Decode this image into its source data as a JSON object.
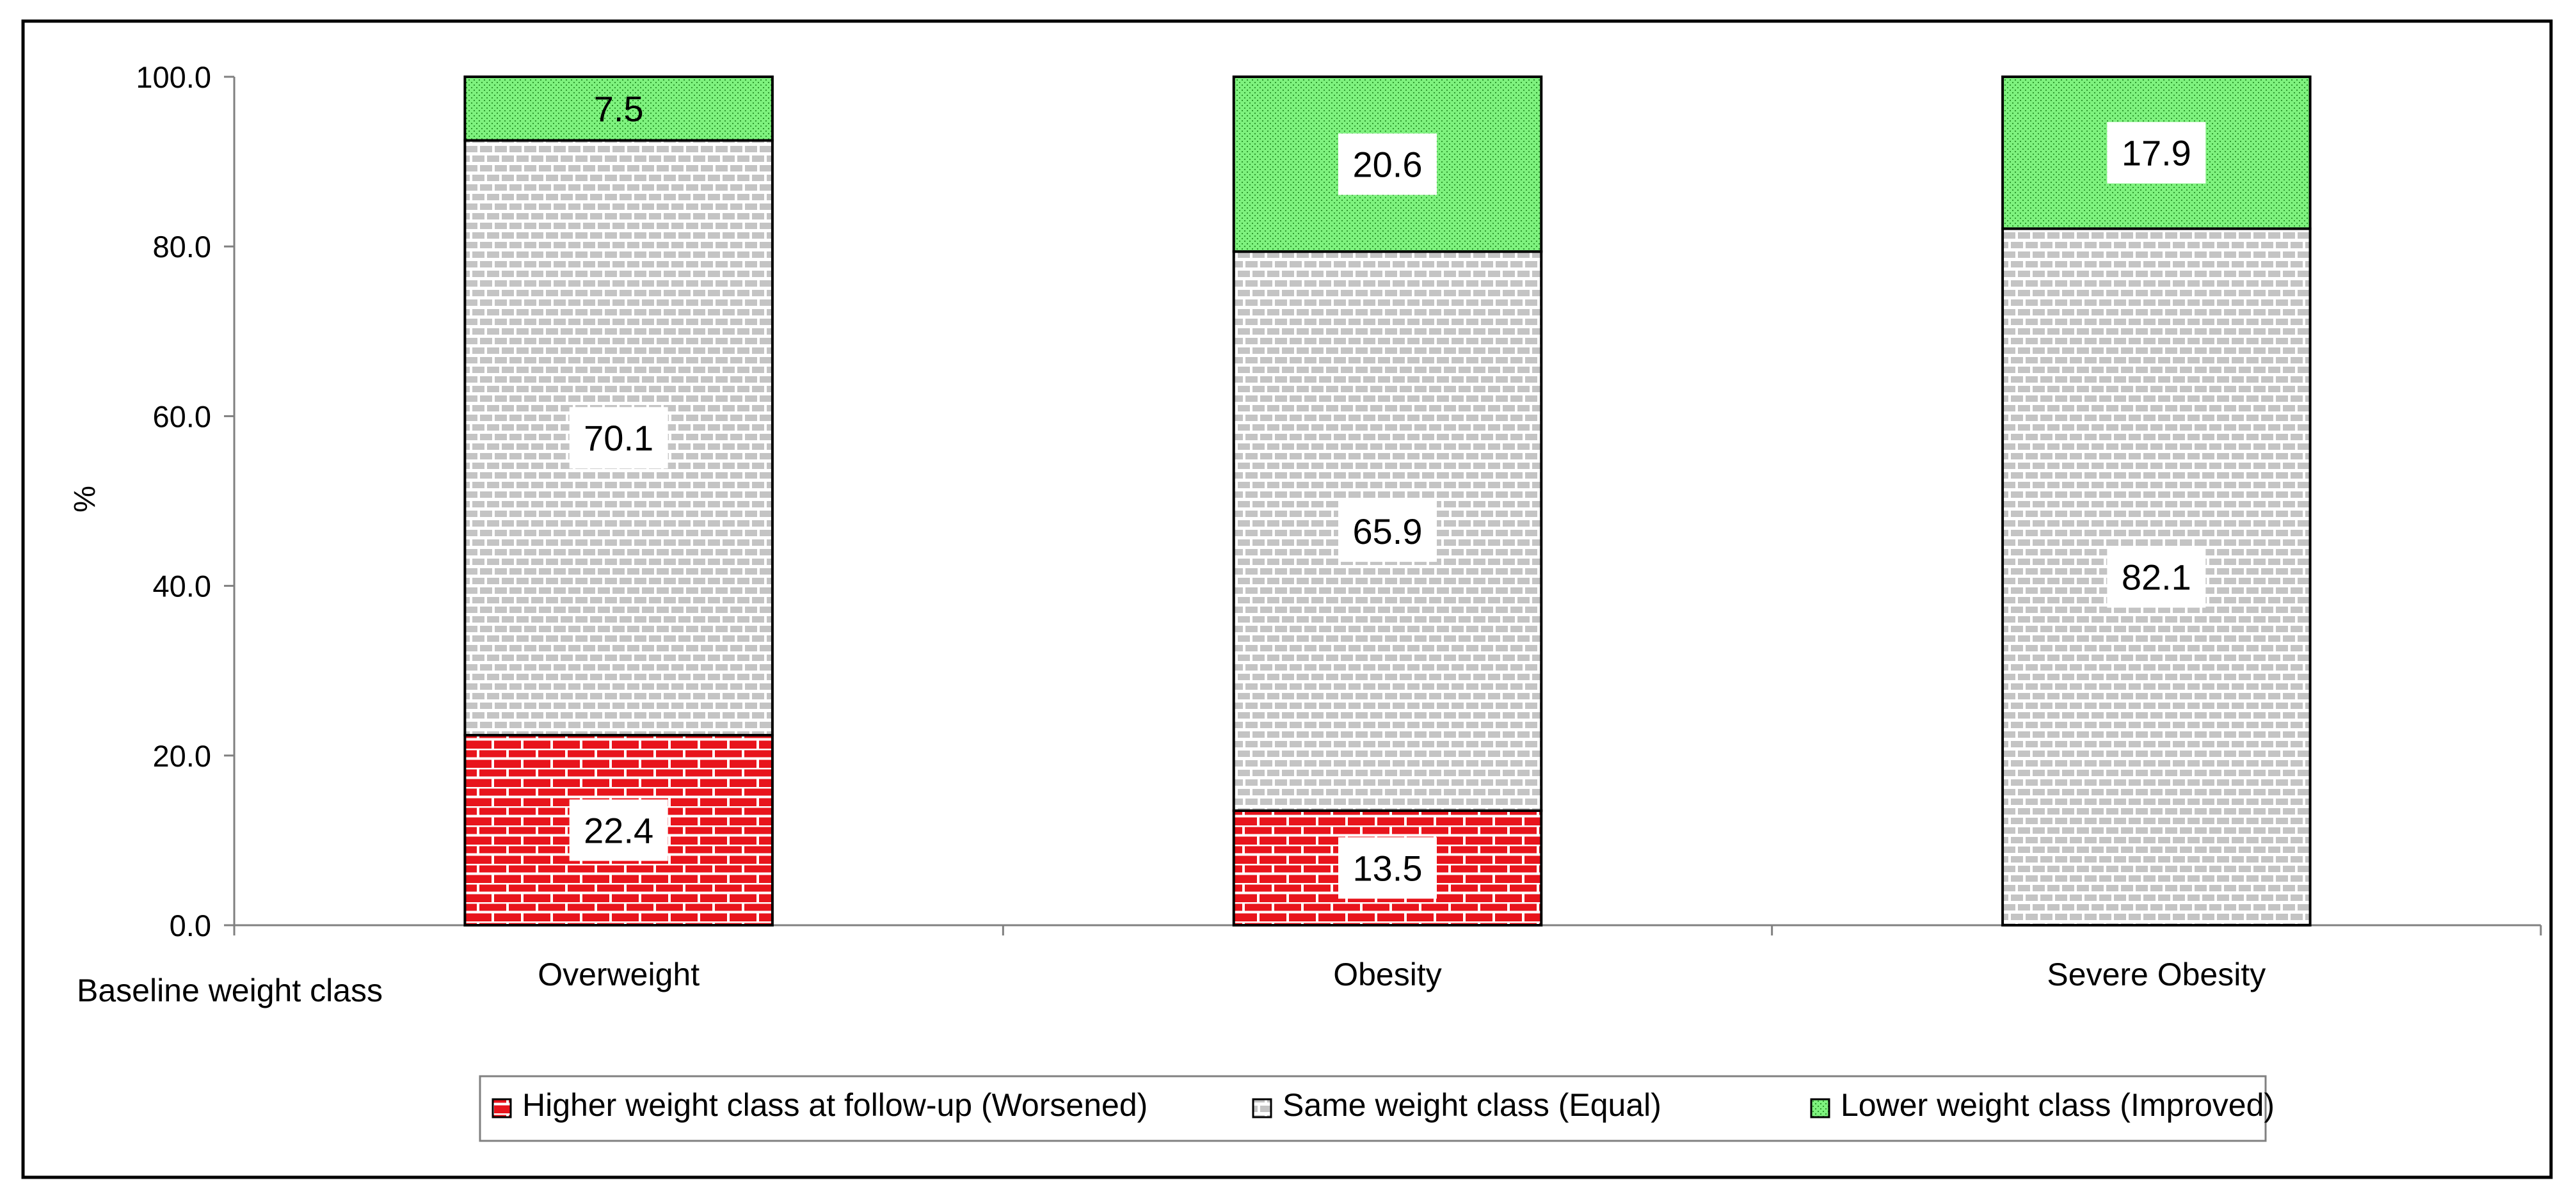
{
  "chart_data": {
    "type": "bar",
    "stacked": true,
    "categories": [
      "Overweight",
      "Obesity",
      "Severe Obesity"
    ],
    "series": [
      {
        "name": "Higher weight class at follow-up (Worsened)",
        "values": [
          22.4,
          13.5,
          0
        ],
        "color": "#e8141c"
      },
      {
        "name": "Same weight class (Equal)",
        "values": [
          70.1,
          65.9,
          82.1
        ],
        "color": "#c8c8c8"
      },
      {
        "name": "Lower weight class (Improved)",
        "values": [
          7.5,
          20.6,
          17.9
        ],
        "color": "#7df07d"
      }
    ],
    "data_labels": [
      [
        "22.4",
        "13.5",
        ""
      ],
      [
        "70.1",
        "65.9",
        "82.1"
      ],
      [
        "7.5",
        "20.6",
        "17.9"
      ]
    ],
    "ylabel": "%",
    "xlabel": "Baseline weight class",
    "ylim": [
      0,
      100
    ],
    "yticks": [
      "0.0",
      "20.0",
      "40.0",
      "60.0",
      "80.0",
      "100.0"
    ],
    "grid": false,
    "legend_position": "bottom"
  }
}
